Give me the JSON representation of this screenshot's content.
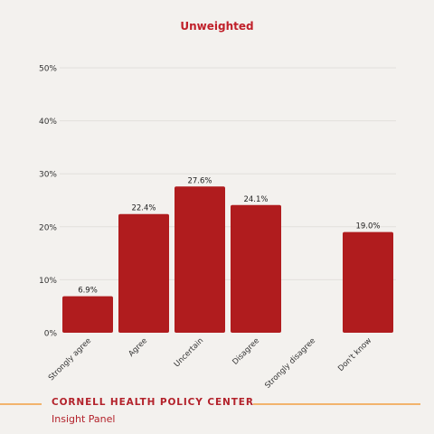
{
  "colors": {
    "background": "#f3f1ee",
    "bar": "#b01c1e",
    "title": "#c0202a",
    "accent_rule": "#f2b36c",
    "gridline": "#e2e0dc"
  },
  "chart_data": {
    "type": "bar",
    "title": "Unweighted",
    "categories": [
      "Strongly agree",
      "Agree",
      "Uncertain",
      "Disagree",
      "Strongly disagree",
      "Don't know"
    ],
    "values": [
      6.9,
      22.4,
      27.6,
      24.1,
      0,
      19.0
    ],
    "data_labels": [
      "6.9%",
      "22.4%",
      "27.6%",
      "24.1%",
      "",
      "19.0%"
    ],
    "yticks": [
      0,
      10,
      20,
      30,
      40,
      50
    ],
    "ytick_labels": [
      "0%",
      "10%",
      "20%",
      "30%",
      "40%",
      "50%"
    ],
    "ylim": [
      0,
      50
    ],
    "grid": true
  },
  "footer": {
    "organization": "CORNELL HEALTH POLICY CENTER",
    "subtitle": "Insight Panel"
  }
}
